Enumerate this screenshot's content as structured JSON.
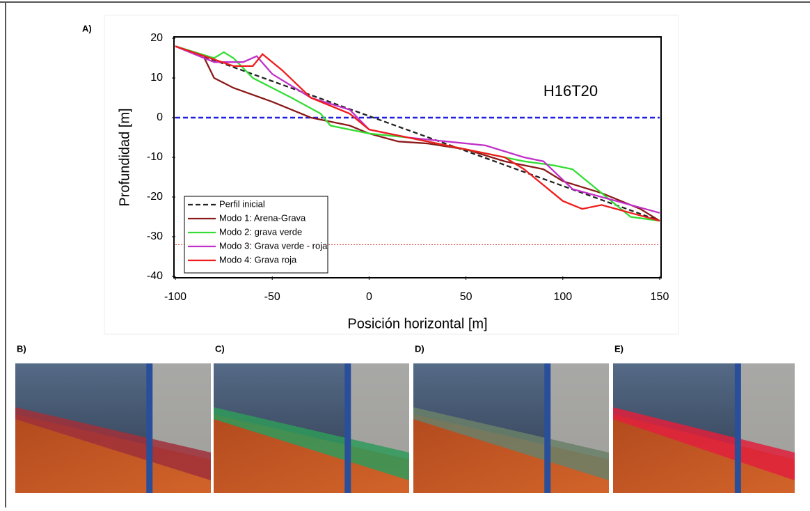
{
  "chart_data": {
    "type": "line",
    "label": "A)",
    "annotation": "H16T20",
    "xlabel": "Posición horizontal [m]",
    "ylabel": "Profundidad [m]",
    "xlim": [
      -100,
      150
    ],
    "xticks": [
      -100,
      -50,
      0,
      50,
      100,
      150
    ],
    "ylim": [
      -40,
      20
    ],
    "yticks": [
      -40,
      -30,
      -20,
      -10,
      0,
      10,
      20
    ],
    "reference_lines": [
      {
        "value": 0,
        "color": "#1f1fe0",
        "style": "dashed"
      },
      {
        "value": -32,
        "color": "#d04040",
        "style": "dotted"
      }
    ],
    "legend": "lower left",
    "series": [
      {
        "name": "Perfil inicial",
        "color": "#222222",
        "style": "dashed",
        "x": [
          -100,
          0,
          150
        ],
        "values": [
          18,
          0.4,
          -26
        ]
      },
      {
        "name": "Modo 1: Arena-Grava",
        "color": "#8b1a1a",
        "style": "solid",
        "x": [
          -100,
          -85,
          -80,
          -70,
          -50,
          -30,
          -10,
          0,
          15,
          30,
          50,
          70,
          90,
          100,
          120,
          140,
          150
        ],
        "values": [
          18,
          15,
          10,
          7.5,
          4,
          0,
          -2,
          -4,
          -6,
          -6.5,
          -8,
          -11,
          -13,
          -16,
          -19,
          -23,
          -26
        ]
      },
      {
        "name": "Modo 2: grava verde",
        "color": "#33dd33",
        "style": "solid",
        "x": [
          -100,
          -80,
          -75,
          -70,
          -60,
          -40,
          -25,
          -20,
          0,
          20,
          40,
          60,
          80,
          95,
          105,
          115,
          125,
          135,
          150
        ],
        "values": [
          18,
          15,
          16.5,
          15,
          10,
          5,
          1,
          -2,
          -4,
          -5,
          -7,
          -9,
          -11,
          -12,
          -13,
          -17,
          -21,
          -25,
          -26
        ]
      },
      {
        "name": "Modo 3: Grava verde - roja",
        "color": "#c030c8",
        "style": "solid",
        "x": [
          -100,
          -80,
          -65,
          -58,
          -50,
          -30,
          -10,
          0,
          20,
          40,
          60,
          80,
          90,
          105,
          120,
          150
        ],
        "values": [
          18,
          14,
          14,
          15.5,
          11,
          5,
          2,
          -3,
          -5,
          -6,
          -7,
          -10,
          -11,
          -18,
          -20,
          -24
        ]
      },
      {
        "name": "Modo 4: Grava roja",
        "color": "#ee1c1c",
        "style": "solid",
        "x": [
          -100,
          -70,
          -60,
          -55,
          -45,
          -30,
          -10,
          0,
          20,
          40,
          60,
          70,
          80,
          90,
          100,
          110,
          120,
          135,
          150
        ],
        "values": [
          18,
          13,
          13,
          16,
          12,
          5,
          1,
          -3,
          -5,
          -7,
          -9,
          -10,
          -13,
          -17,
          -21,
          -23,
          -22,
          -24,
          -26
        ]
      }
    ]
  },
  "panels": [
    "B)",
    "C)",
    "D)",
    "E)"
  ]
}
